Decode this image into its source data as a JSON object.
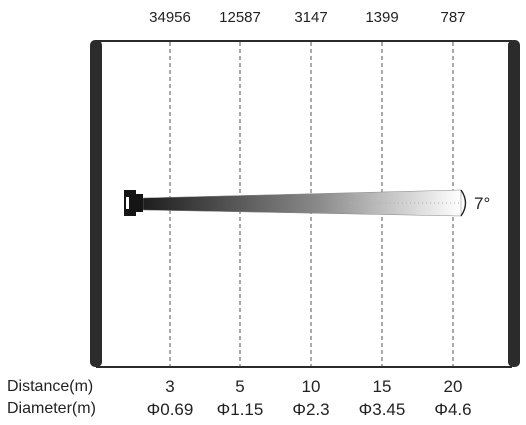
{
  "beam": {
    "angle_label": "7°",
    "columns": [
      {
        "lux": "34956",
        "distance": "3",
        "diameter": "Φ0.69"
      },
      {
        "lux": "12587",
        "distance": "5",
        "diameter": "Φ1.15"
      },
      {
        "lux": "3147",
        "distance": "10",
        "diameter": "Φ2.3"
      },
      {
        "lux": "1399",
        "distance": "15",
        "diameter": "Φ3.45"
      },
      {
        "lux": "787",
        "distance": "20",
        "diameter": "Φ4.6"
      }
    ],
    "row_labels": {
      "distance": "Distance(m)",
      "diameter": "Diameter(m)"
    },
    "colors": {
      "wall": "#2b2b2b",
      "beam_start": "#1e1e1e",
      "beam_end": "#ffffff",
      "fixture": "#151515"
    }
  }
}
